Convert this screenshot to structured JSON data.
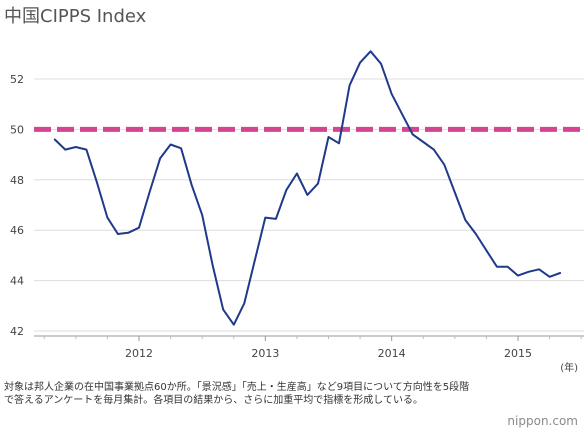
{
  "chart_data": {
    "type": "line",
    "title": "中国CIPPS Index",
    "unit_label": "(年)",
    "ylim": [
      42,
      54
    ],
    "yticks": [
      42,
      44,
      46,
      48,
      50,
      52
    ],
    "xticks": [
      {
        "label": "2012",
        "value": 2012
      },
      {
        "label": "2013",
        "value": 2013
      },
      {
        "label": "2014",
        "value": 2014
      },
      {
        "label": "2015",
        "value": 2015
      }
    ],
    "xlim": [
      2011.1,
      2015.5
    ],
    "reference_line": {
      "value": 50,
      "color": "#d4458f",
      "style": "dashed"
    },
    "series": [
      {
        "color": "#1f3a8a",
        "points": [
          [
            "2011-05",
            49.6
          ],
          [
            "2011-06",
            49.2
          ],
          [
            "2011-07",
            49.3
          ],
          [
            "2011-08",
            49.2
          ],
          [
            "2011-09",
            47.9
          ],
          [
            "2011-10",
            46.5
          ],
          [
            "2011-11",
            45.85
          ],
          [
            "2011-12",
            45.9
          ],
          [
            "2012-01",
            46.1
          ],
          [
            "2012-02",
            47.5
          ],
          [
            "2012-03",
            48.85
          ],
          [
            "2012-04",
            49.4
          ],
          [
            "2012-05",
            49.25
          ],
          [
            "2012-06",
            47.8
          ],
          [
            "2012-07",
            46.6
          ],
          [
            "2012-08",
            44.6
          ],
          [
            "2012-09",
            42.85
          ],
          [
            "2012-10",
            42.25
          ],
          [
            "2012-11",
            43.1
          ],
          [
            "2012-12",
            44.8
          ],
          [
            "2013-01",
            46.5
          ],
          [
            "2013-02",
            46.45
          ],
          [
            "2013-03",
            47.6
          ],
          [
            "2013-04",
            48.25
          ],
          [
            "2013-05",
            47.4
          ],
          [
            "2013-06",
            47.85
          ],
          [
            "2013-07",
            49.7
          ],
          [
            "2013-08",
            49.45
          ],
          [
            "2013-09",
            51.75
          ],
          [
            "2013-10",
            52.65
          ],
          [
            "2013-11",
            53.1
          ],
          [
            "2013-12",
            52.6
          ],
          [
            "2014-01",
            51.4
          ],
          [
            "2014-02",
            50.6
          ],
          [
            "2014-03",
            49.8
          ],
          [
            "2014-04",
            49.5
          ],
          [
            "2014-05",
            49.2
          ],
          [
            "2014-06",
            48.6
          ],
          [
            "2014-07",
            47.5
          ],
          [
            "2014-08",
            46.4
          ],
          [
            "2014-09",
            45.85
          ],
          [
            "2014-10",
            45.2
          ],
          [
            "2014-11",
            44.55
          ],
          [
            "2014-12",
            44.55
          ],
          [
            "2015-01",
            44.2
          ],
          [
            "2015-02",
            44.35
          ],
          [
            "2015-03",
            44.45
          ],
          [
            "2015-04",
            44.15
          ],
          [
            "2015-05",
            44.3
          ]
        ]
      }
    ]
  },
  "note": "対象は邦人企業の在中国事業拠点60か所。「景況感」「売上・生産高」など9項目について方向性を5段階で答えるアンケートを毎月集計。各項目の結果から、さらに加重平均で指標を形成している。",
  "brand": "nippon.com"
}
